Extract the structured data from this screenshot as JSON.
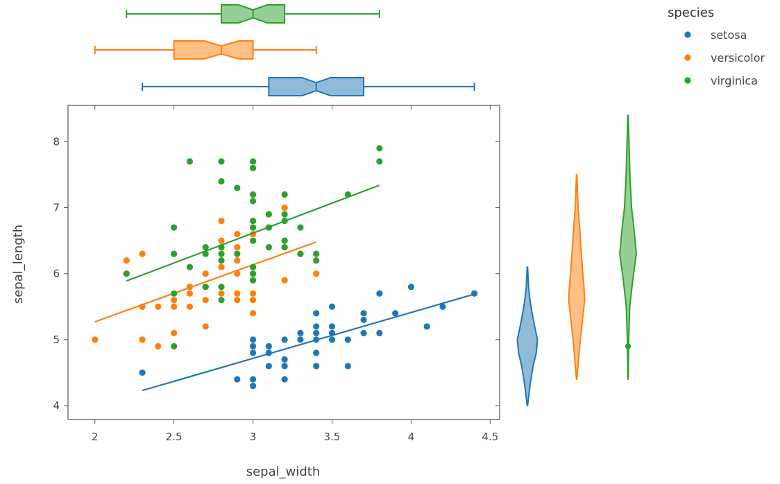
{
  "chart_data": {
    "type": "scatter",
    "xlabel": "sepal_width",
    "ylabel": "sepal_length",
    "xlim": [
      1.83,
      4.56
    ],
    "ylim": [
      3.79,
      8.55
    ],
    "x_ticks": [
      2,
      2.5,
      3,
      3.5,
      4,
      4.5
    ],
    "y_ticks": [
      4,
      5,
      6,
      7,
      8
    ],
    "legend": {
      "title": "species",
      "position": "top-right"
    },
    "marginal_x": "box (notched)",
    "marginal_y": "violin",
    "trendline": "ols",
    "series": [
      {
        "name": "setosa",
        "color": "#1f77b4",
        "points": [
          [
            2.3,
            4.5
          ],
          [
            2.9,
            4.4
          ],
          [
            3.0,
            4.3
          ],
          [
            3.0,
            4.4
          ],
          [
            3.0,
            4.8
          ],
          [
            3.0,
            4.9
          ],
          [
            3.0,
            5.0
          ],
          [
            3.1,
            4.8
          ],
          [
            3.1,
            4.9
          ],
          [
            3.1,
            4.6
          ],
          [
            3.2,
            4.7
          ],
          [
            3.2,
            4.4
          ],
          [
            3.2,
            4.6
          ],
          [
            3.2,
            5.0
          ],
          [
            3.3,
            5.1
          ],
          [
            3.3,
            5.0
          ],
          [
            3.4,
            4.6
          ],
          [
            3.4,
            4.8
          ],
          [
            3.4,
            5.0
          ],
          [
            3.4,
            5.1
          ],
          [
            3.4,
            5.2
          ],
          [
            3.4,
            5.4
          ],
          [
            3.5,
            5.0
          ],
          [
            3.5,
            5.1
          ],
          [
            3.5,
            5.2
          ],
          [
            3.5,
            5.5
          ],
          [
            3.6,
            5.0
          ],
          [
            3.6,
            4.6
          ],
          [
            3.7,
            5.1
          ],
          [
            3.7,
            5.3
          ],
          [
            3.7,
            5.4
          ],
          [
            3.8,
            5.1
          ],
          [
            3.8,
            5.7
          ],
          [
            3.9,
            5.4
          ],
          [
            4.0,
            5.8
          ],
          [
            4.1,
            5.2
          ],
          [
            4.2,
            5.5
          ],
          [
            4.4,
            5.7
          ]
        ],
        "trendline": {
          "x": [
            2.3,
            4.4
          ],
          "y": [
            4.23,
            5.69
          ]
        },
        "box": {
          "min": 2.3,
          "q1": 3.1,
          "median": 3.4,
          "q3": 3.7,
          "max": 4.4,
          "notch": [
            3.31,
            3.49
          ]
        },
        "violin": {
          "min": 4.0,
          "max": 6.1,
          "profile": [
            [
              4.0,
              0.02
            ],
            [
              4.3,
              0.22
            ],
            [
              4.6,
              0.48
            ],
            [
              4.8,
              0.75
            ],
            [
              5.0,
              0.85
            ],
            [
              5.2,
              0.62
            ],
            [
              5.4,
              0.4
            ],
            [
              5.6,
              0.22
            ],
            [
              5.8,
              0.1
            ],
            [
              6.1,
              0.02
            ]
          ]
        }
      },
      {
        "name": "versicolor",
        "color": "#ff7f0e",
        "points": [
          [
            2.0,
            5.0
          ],
          [
            2.2,
            6.0
          ],
          [
            2.2,
            6.2
          ],
          [
            2.3,
            5.0
          ],
          [
            2.3,
            5.5
          ],
          [
            2.3,
            6.3
          ],
          [
            2.4,
            4.9
          ],
          [
            2.4,
            5.5
          ],
          [
            2.5,
            5.1
          ],
          [
            2.5,
            5.5
          ],
          [
            2.5,
            5.6
          ],
          [
            2.5,
            6.3
          ],
          [
            2.6,
            5.5
          ],
          [
            2.6,
            5.7
          ],
          [
            2.6,
            5.8
          ],
          [
            2.7,
            5.2
          ],
          [
            2.7,
            5.6
          ],
          [
            2.7,
            5.8
          ],
          [
            2.7,
            6.0
          ],
          [
            2.8,
            5.7
          ],
          [
            2.8,
            6.1
          ],
          [
            2.8,
            6.5
          ],
          [
            2.8,
            6.8
          ],
          [
            2.9,
            5.6
          ],
          [
            2.9,
            5.7
          ],
          [
            2.9,
            6.0
          ],
          [
            2.9,
            6.2
          ],
          [
            2.9,
            6.4
          ],
          [
            2.9,
            6.6
          ],
          [
            3.0,
            5.4
          ],
          [
            3.0,
            5.6
          ],
          [
            3.0,
            5.7
          ],
          [
            3.0,
            5.9
          ],
          [
            3.0,
            6.1
          ],
          [
            3.0,
            6.6
          ],
          [
            3.0,
            6.7
          ],
          [
            3.1,
            6.7
          ],
          [
            3.1,
            6.9
          ],
          [
            3.2,
            5.9
          ],
          [
            3.2,
            6.4
          ],
          [
            3.2,
            7.0
          ],
          [
            3.3,
            6.3
          ],
          [
            3.4,
            6.0
          ]
        ],
        "trendline": {
          "x": [
            2.0,
            3.4
          ],
          "y": [
            5.27,
            6.48
          ]
        },
        "box": {
          "min": 2.0,
          "q1": 2.5,
          "median": 2.8,
          "q3": 3.0,
          "max": 3.4,
          "notch": [
            2.69,
            2.91
          ]
        },
        "violin": {
          "min": 4.4,
          "max": 7.5,
          "profile": [
            [
              4.4,
              0.02
            ],
            [
              4.9,
              0.25
            ],
            [
              5.4,
              0.55
            ],
            [
              5.6,
              0.68
            ],
            [
              5.8,
              0.62
            ],
            [
              6.0,
              0.52
            ],
            [
              6.3,
              0.4
            ],
            [
              6.7,
              0.25
            ],
            [
              7.0,
              0.12
            ],
            [
              7.5,
              0.02
            ]
          ]
        }
      },
      {
        "name": "virginica",
        "color": "#2ca02c",
        "points": [
          [
            2.2,
            6.0
          ],
          [
            2.5,
            4.9
          ],
          [
            2.5,
            5.7
          ],
          [
            2.5,
            6.3
          ],
          [
            2.5,
            6.7
          ],
          [
            2.6,
            6.1
          ],
          [
            2.6,
            7.7
          ],
          [
            2.7,
            5.8
          ],
          [
            2.7,
            6.3
          ],
          [
            2.7,
            6.4
          ],
          [
            2.8,
            5.6
          ],
          [
            2.8,
            5.8
          ],
          [
            2.8,
            6.2
          ],
          [
            2.8,
            6.3
          ],
          [
            2.8,
            6.4
          ],
          [
            2.8,
            7.4
          ],
          [
            2.8,
            7.7
          ],
          [
            2.9,
            6.3
          ],
          [
            2.9,
            7.3
          ],
          [
            3.0,
            5.9
          ],
          [
            3.0,
            6.0
          ],
          [
            3.0,
            6.1
          ],
          [
            3.0,
            6.5
          ],
          [
            3.0,
            6.7
          ],
          [
            3.0,
            6.8
          ],
          [
            3.0,
            7.1
          ],
          [
            3.0,
            7.2
          ],
          [
            3.0,
            7.6
          ],
          [
            3.0,
            7.7
          ],
          [
            3.1,
            6.4
          ],
          [
            3.1,
            6.7
          ],
          [
            3.1,
            6.9
          ],
          [
            3.2,
            6.4
          ],
          [
            3.2,
            6.5
          ],
          [
            3.2,
            6.8
          ],
          [
            3.2,
            6.9
          ],
          [
            3.2,
            7.2
          ],
          [
            3.3,
            6.3
          ],
          [
            3.3,
            6.7
          ],
          [
            3.4,
            6.2
          ],
          [
            3.4,
            6.3
          ],
          [
            3.6,
            7.2
          ],
          [
            3.8,
            7.7
          ],
          [
            3.8,
            7.9
          ]
        ],
        "trendline": {
          "x": [
            2.2,
            3.8
          ],
          "y": [
            5.89,
            7.34
          ]
        },
        "box": {
          "min": 2.2,
          "q1": 2.8,
          "median": 3.0,
          "q3": 3.2,
          "max": 3.8,
          "notch": [
            2.91,
            3.09
          ]
        },
        "violin": {
          "min": 4.4,
          "max": 8.4,
          "outlier": 4.9,
          "profile": [
            [
              4.4,
              0.02
            ],
            [
              5.0,
              0.06
            ],
            [
              5.5,
              0.15
            ],
            [
              5.9,
              0.4
            ],
            [
              6.3,
              0.7
            ],
            [
              6.6,
              0.55
            ],
            [
              7.0,
              0.3
            ],
            [
              7.5,
              0.16
            ],
            [
              8.0,
              0.08
            ],
            [
              8.4,
              0.02
            ]
          ]
        }
      }
    ]
  }
}
